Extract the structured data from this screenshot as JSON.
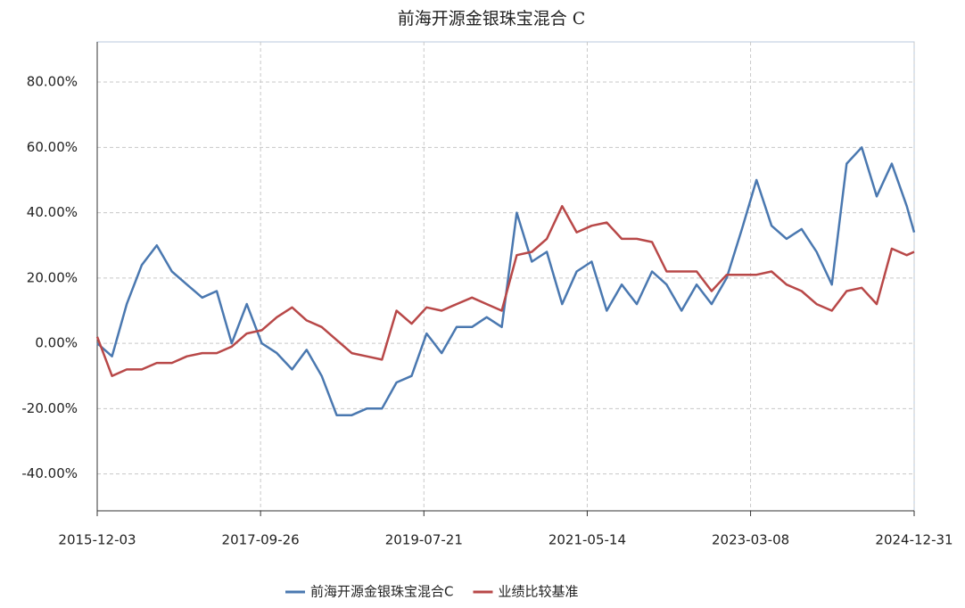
{
  "chart_data": {
    "type": "line",
    "title": "前海开源金银珠宝混合 C",
    "x": [
      "2015-12-03",
      "2016-02-01",
      "2016-04-01",
      "2016-06-01",
      "2016-08-01",
      "2016-10-01",
      "2016-12-01",
      "2017-02-01",
      "2017-04-01",
      "2017-06-01",
      "2017-08-01",
      "2017-10-01",
      "2017-12-01",
      "2018-02-01",
      "2018-04-01",
      "2018-06-01",
      "2018-08-01",
      "2018-10-01",
      "2018-12-01",
      "2019-02-01",
      "2019-04-01",
      "2019-06-01",
      "2019-08-01",
      "2019-10-01",
      "2019-12-01",
      "2020-02-01",
      "2020-04-01",
      "2020-06-01",
      "2020-08-01",
      "2020-10-01",
      "2020-12-01",
      "2021-02-01",
      "2021-04-01",
      "2021-06-01",
      "2021-08-01",
      "2021-10-01",
      "2021-12-01",
      "2022-02-01",
      "2022-04-01",
      "2022-06-01",
      "2022-08-01",
      "2022-10-01",
      "2022-12-01",
      "2023-02-01",
      "2023-04-01",
      "2023-06-01",
      "2023-08-01",
      "2023-10-01",
      "2023-12-01",
      "2024-02-01",
      "2024-04-01",
      "2024-06-01",
      "2024-08-01",
      "2024-10-01",
      "2024-12-01",
      "2024-12-31"
    ],
    "series": [
      {
        "name": "前海开源金银珠宝混合C",
        "color": "#4a78b0",
        "values": [
          0,
          -4,
          12,
          24,
          30,
          22,
          18,
          14,
          16,
          0,
          12,
          0,
          -3,
          -8,
          -2,
          -10,
          -22,
          -22,
          -20,
          -20,
          -12,
          -10,
          3,
          -3,
          5,
          5,
          8,
          5,
          40,
          25,
          28,
          12,
          22,
          25,
          10,
          18,
          12,
          22,
          18,
          10,
          18,
          12,
          20,
          35,
          50,
          36,
          32,
          35,
          28,
          18,
          55,
          60,
          45,
          55,
          42,
          34
        ]
      },
      {
        "name": "业绩比较基准",
        "color": "#b84848",
        "values": [
          2,
          -10,
          -8,
          -8,
          -6,
          -6,
          -4,
          -3,
          -3,
          -1,
          3,
          4,
          8,
          11,
          7,
          5,
          1,
          -3,
          -4,
          -5,
          10,
          6,
          11,
          10,
          12,
          14,
          12,
          10,
          27,
          28,
          32,
          42,
          34,
          36,
          37,
          32,
          32,
          31,
          22,
          22,
          22,
          16,
          21,
          21,
          21,
          22,
          18,
          16,
          12,
          10,
          16,
          17,
          12,
          29,
          27,
          28
        ]
      }
    ],
    "xlim": [
      "2015-12-03",
      "2024-12-31"
    ],
    "xticks": [
      "2015-12-03",
      "2017-09-26",
      "2019-07-21",
      "2021-05-14",
      "2023-03-08",
      "2024-12-31"
    ],
    "ylim": [
      -51.3,
      92.3
    ],
    "yticks": [
      {
        "value": -40,
        "label": "-40.00%"
      },
      {
        "value": -20,
        "label": "-20.00%"
      },
      {
        "value": 0,
        "label": "0.00%"
      },
      {
        "value": 20,
        "label": "20.00%"
      },
      {
        "value": 40,
        "label": "40.00%"
      },
      {
        "value": 60,
        "label": "60.00%"
      },
      {
        "value": 80,
        "label": "80.00%"
      }
    ],
    "grid": true,
    "legend": "bottom"
  }
}
